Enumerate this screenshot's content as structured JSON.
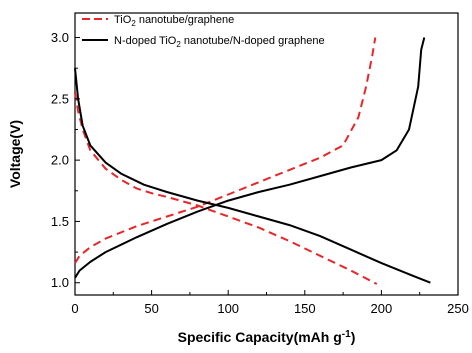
{
  "chart_data": {
    "type": "line",
    "xlabel": "Specific Capacity(mAh g",
    "xlabel_sup": "-1",
    "xlabel_tail": ")",
    "ylabel": "Voltage(V)",
    "xlim": [
      0,
      250
    ],
    "ylim": [
      0.9,
      3.2
    ],
    "x_ticks": [
      0,
      50,
      100,
      150,
      200,
      250
    ],
    "y_ticks": [
      1.0,
      1.5,
      2.0,
      2.5,
      3.0
    ],
    "x_tick_labels": [
      "0",
      "50",
      "100",
      "150",
      "200",
      "250"
    ],
    "y_tick_labels": [
      "1.0",
      "1.5",
      "2.0",
      "2.5",
      "3.0"
    ],
    "legend_position": "top-left",
    "series": [
      {
        "name": "TiO2 nanotube/graphene",
        "legend_parts": [
          "TiO",
          "2",
          " nanotube/graphene"
        ],
        "color": "#e8262a",
        "style": "dashed",
        "segments": [
          {
            "role": "discharge",
            "points": [
              [
                0,
                2.55
              ],
              [
                2,
                2.4
              ],
              [
                5,
                2.25
              ],
              [
                10,
                2.08
              ],
              [
                20,
                1.93
              ],
              [
                30,
                1.84
              ],
              [
                40,
                1.77
              ],
              [
                50,
                1.73
              ],
              [
                60,
                1.7
              ],
              [
                80,
                1.63
              ],
              [
                100,
                1.54
              ],
              [
                120,
                1.45
              ],
              [
                140,
                1.34
              ],
              [
                160,
                1.22
              ],
              [
                180,
                1.1
              ],
              [
                197,
                0.99
              ]
            ]
          },
          {
            "role": "charge",
            "points": [
              [
                0,
                1.16
              ],
              [
                3,
                1.22
              ],
              [
                10,
                1.29
              ],
              [
                20,
                1.36
              ],
              [
                40,
                1.46
              ],
              [
                60,
                1.54
              ],
              [
                80,
                1.62
              ],
              [
                100,
                1.72
              ],
              [
                120,
                1.82
              ],
              [
                140,
                1.92
              ],
              [
                160,
                2.02
              ],
              [
                175,
                2.12
              ],
              [
                185,
                2.35
              ],
              [
                190,
                2.6
              ],
              [
                194,
                2.85
              ],
              [
                196,
                3.0
              ]
            ]
          }
        ]
      },
      {
        "name": "N-doped TiO2 nanotube/N-doped graphene",
        "legend_parts": [
          "N-doped TiO",
          "2",
          " nanotube/N-doped graphene"
        ],
        "color": "#000000",
        "style": "solid",
        "segments": [
          {
            "role": "discharge",
            "points": [
              [
                0,
                2.75
              ],
              [
                2,
                2.5
              ],
              [
                5,
                2.28
              ],
              [
                10,
                2.12
              ],
              [
                20,
                1.98
              ],
              [
                30,
                1.89
              ],
              [
                45,
                1.8
              ],
              [
                60,
                1.74
              ],
              [
                80,
                1.67
              ],
              [
                100,
                1.61
              ],
              [
                120,
                1.54
              ],
              [
                140,
                1.47
              ],
              [
                160,
                1.38
              ],
              [
                180,
                1.27
              ],
              [
                200,
                1.16
              ],
              [
                220,
                1.06
              ],
              [
                232,
                1.0
              ]
            ]
          },
          {
            "role": "charge",
            "points": [
              [
                0,
                1.04
              ],
              [
                3,
                1.1
              ],
              [
                10,
                1.17
              ],
              [
                20,
                1.25
              ],
              [
                40,
                1.37
              ],
              [
                60,
                1.48
              ],
              [
                80,
                1.58
              ],
              [
                100,
                1.67
              ],
              [
                120,
                1.74
              ],
              [
                140,
                1.8
              ],
              [
                160,
                1.87
              ],
              [
                180,
                1.94
              ],
              [
                200,
                2.0
              ],
              [
                210,
                2.08
              ],
              [
                218,
                2.25
              ],
              [
                224,
                2.6
              ],
              [
                226,
                2.9
              ],
              [
                228,
                3.0
              ]
            ]
          }
        ]
      }
    ]
  }
}
